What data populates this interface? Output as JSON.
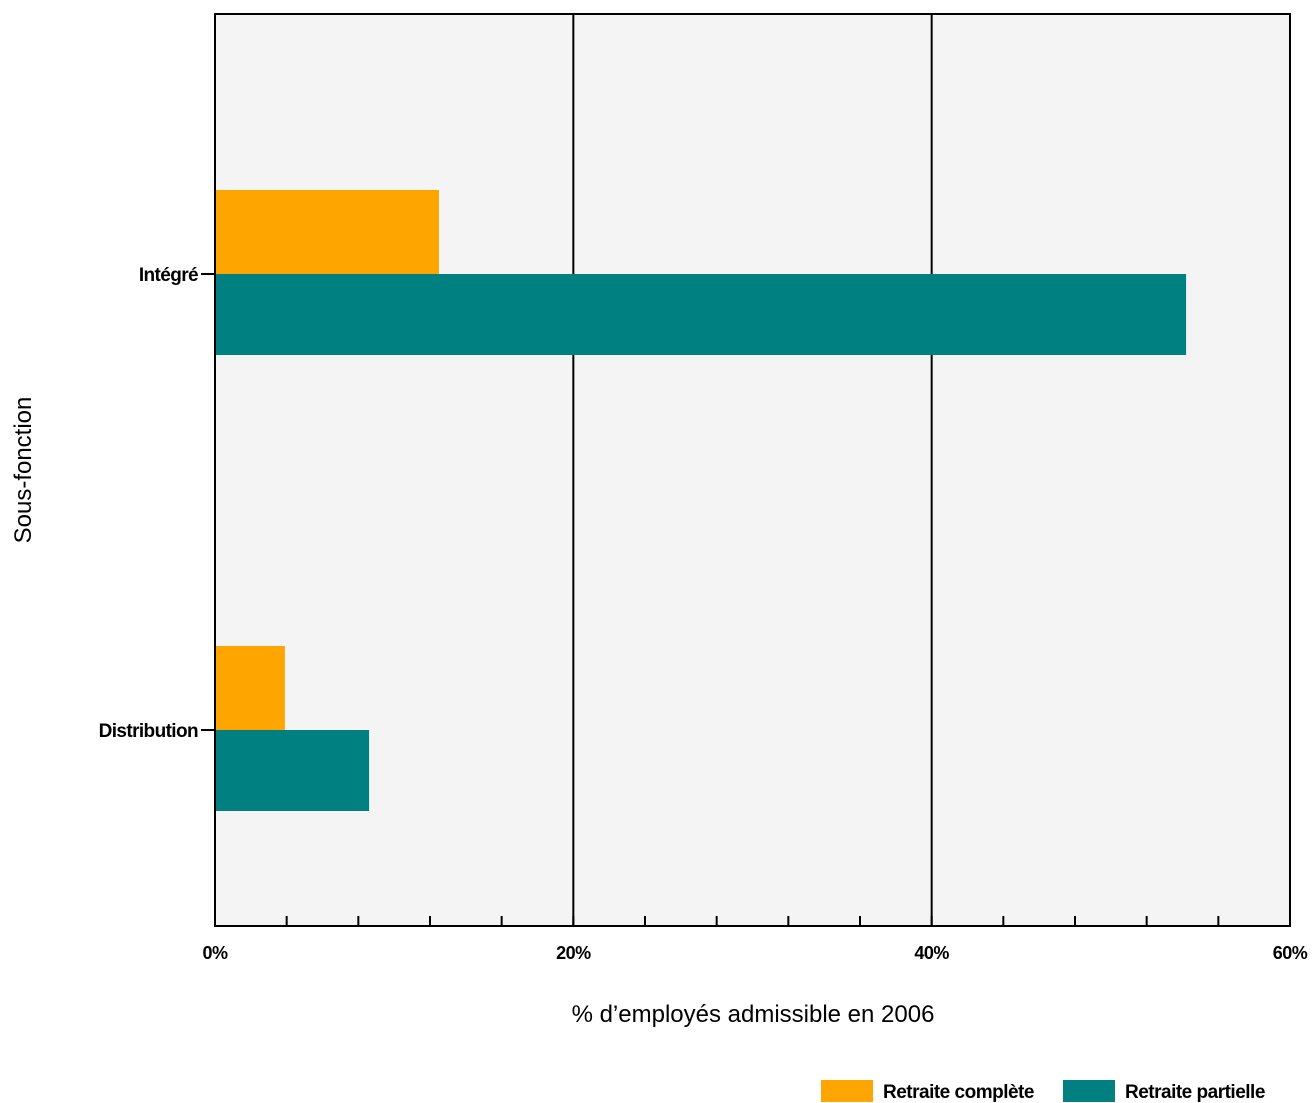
{
  "chart_data": {
    "type": "bar",
    "orientation": "horizontal",
    "categories": [
      "Intégré",
      "Distribution"
    ],
    "series": [
      {
        "name": "Retraite complète",
        "values": [
          12.5,
          3.9
        ],
        "color": "#FFA500"
      },
      {
        "name": "Retraite partielle",
        "values": [
          54.2,
          8.6
        ],
        "color": "#008080"
      }
    ],
    "xlabel": "% d’employés admissible en 2006",
    "ylabel": "Sous-fonction",
    "xlim": [
      0,
      60
    ],
    "major_ticks": [
      0,
      20,
      40,
      60
    ],
    "tick_labels": [
      "0%",
      "20%",
      "40%",
      "60%"
    ],
    "minor_tick_step": 4,
    "grid": "vertical major gridlines",
    "legend_position": "bottom-right",
    "plot_background": "#F4F4F4"
  }
}
